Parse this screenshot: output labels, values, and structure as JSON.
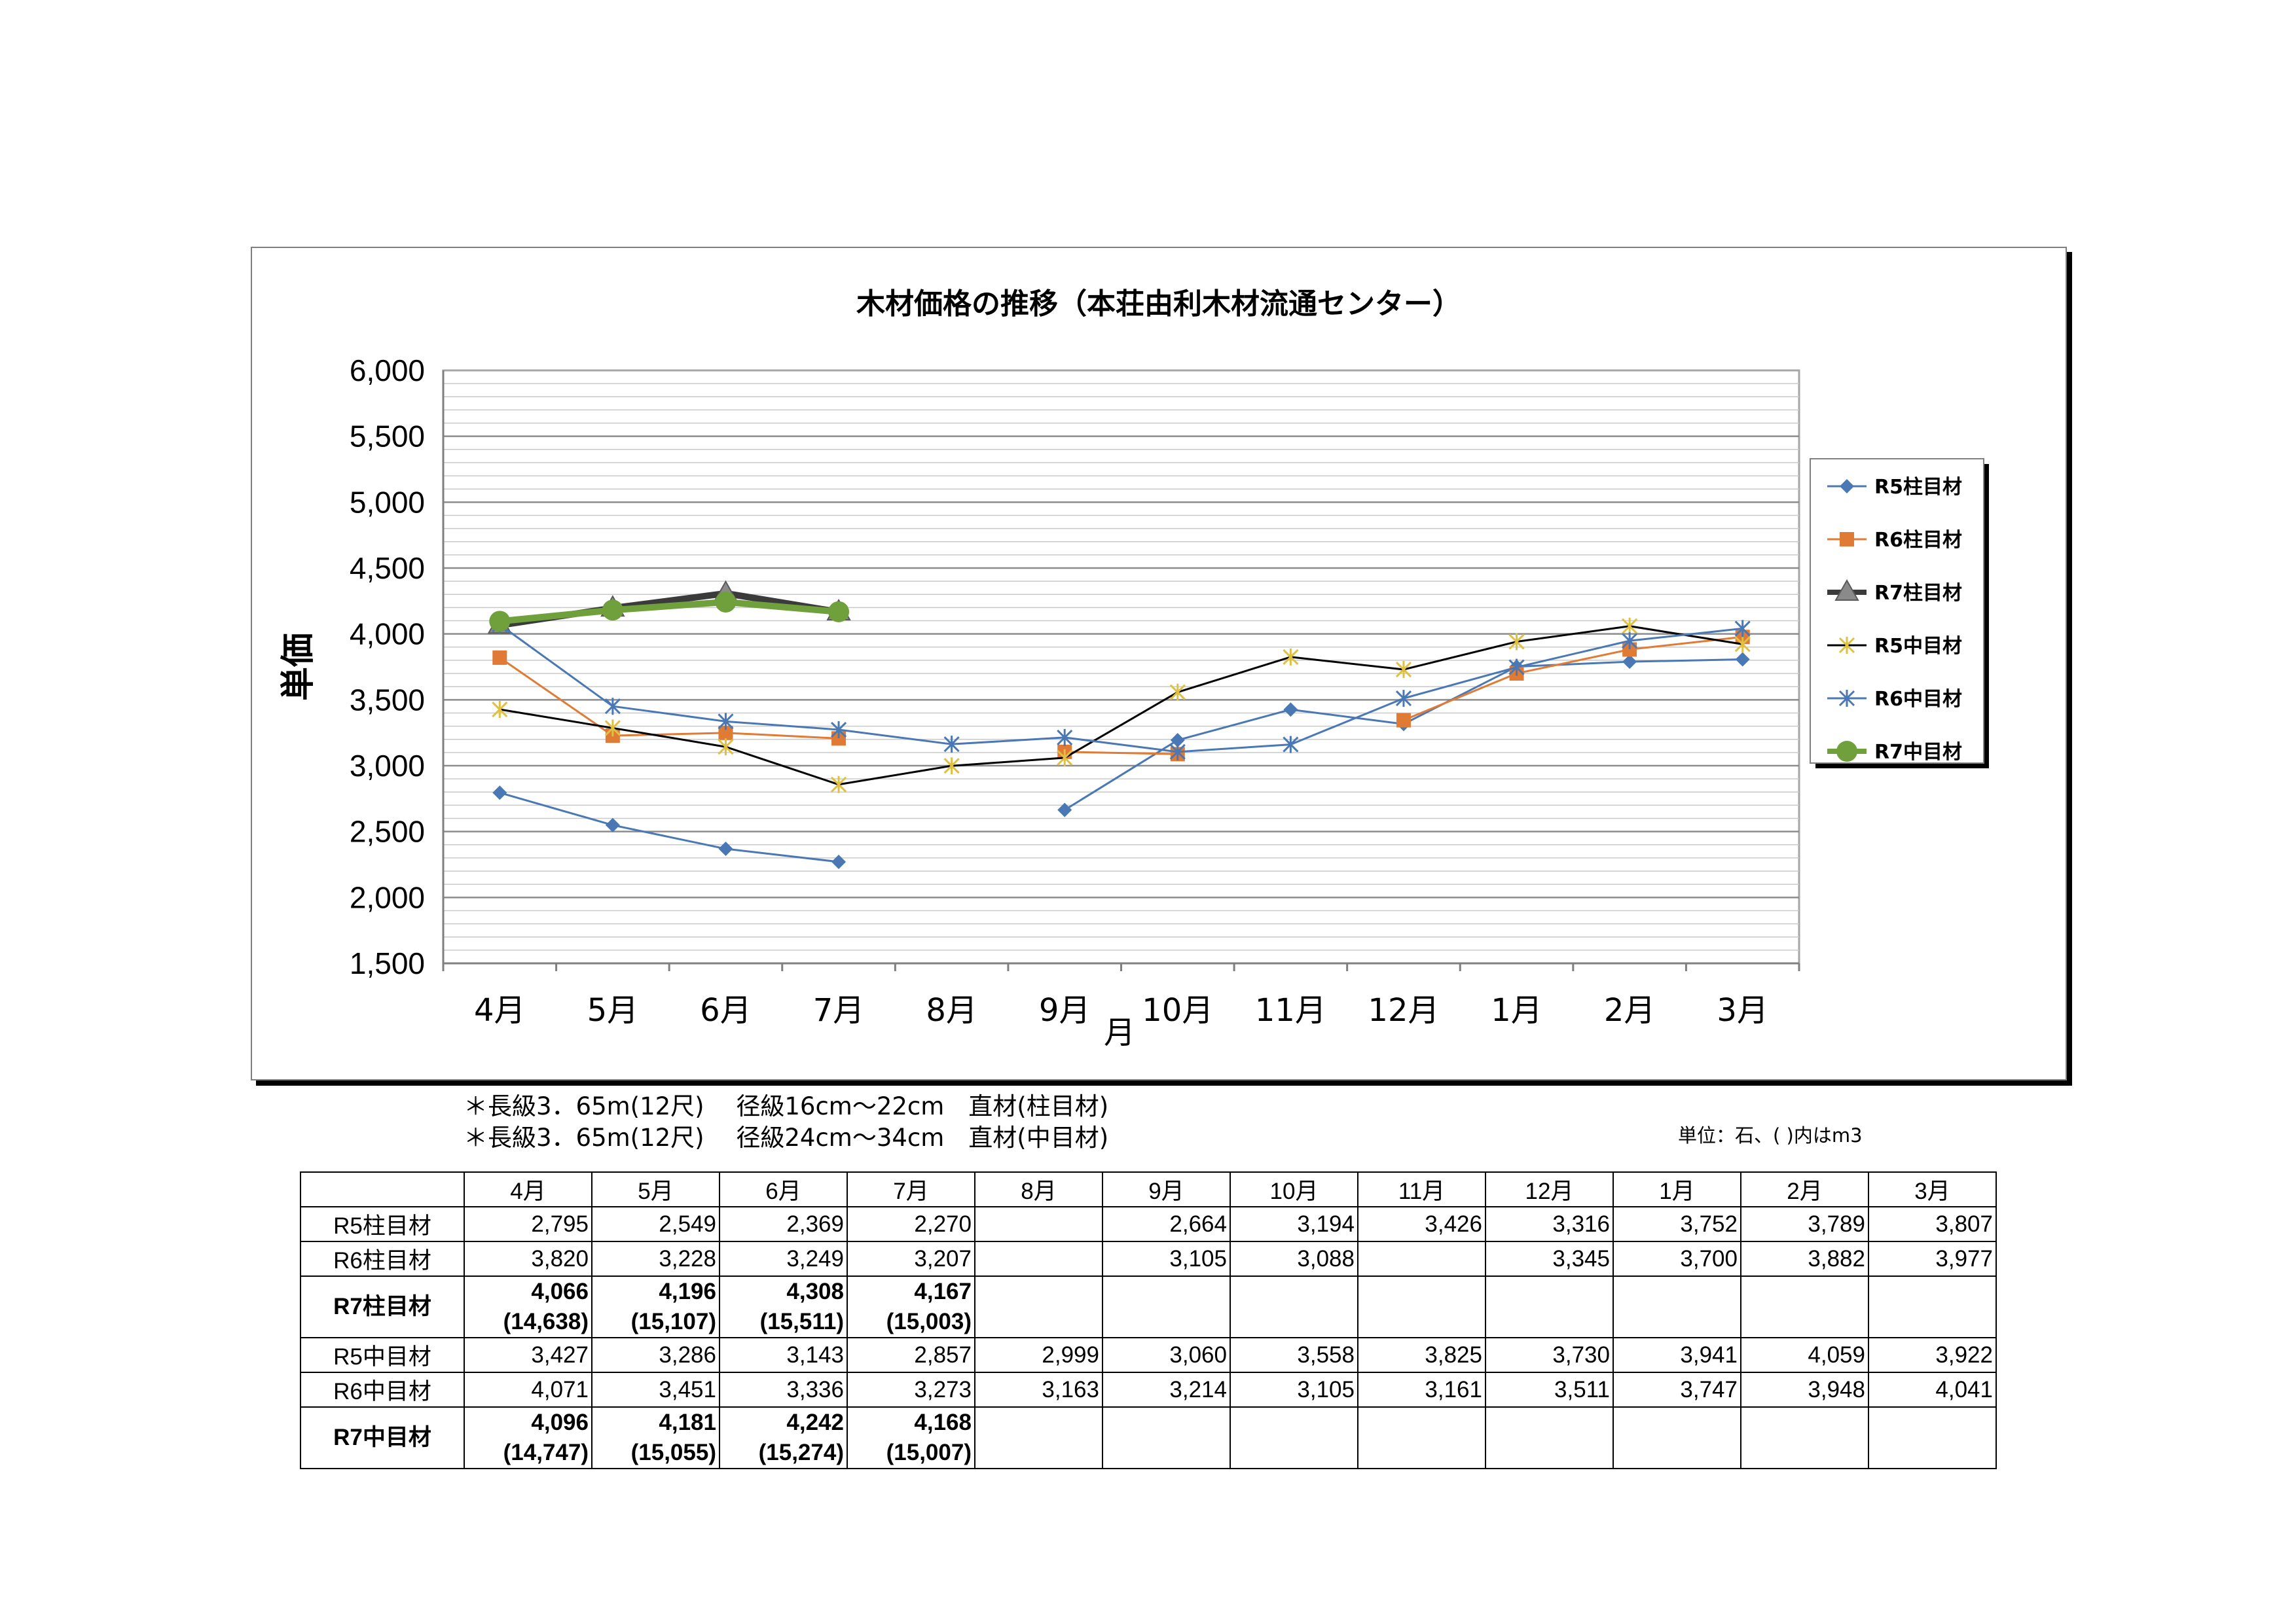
{
  "chart_data": {
    "type": "line",
    "title": "木材価格の推移（本荘由利木材流通センター）",
    "xlabel": "月",
    "ylabel": "単価",
    "ylim": [
      1500,
      6000
    ],
    "yticks": [
      "1,500",
      "2,000",
      "2,500",
      "3,000",
      "3,500",
      "4,000",
      "4,500",
      "5,000",
      "5,500",
      "6,000"
    ],
    "categories": [
      "4月",
      "5月",
      "6月",
      "7月",
      "8月",
      "9月",
      "10月",
      "11月",
      "12月",
      "1月",
      "2月",
      "3月"
    ],
    "grid": true,
    "legend_position": "right",
    "series": [
      {
        "name": "R5柱目材",
        "color": "#4a78b5",
        "marker": "diamond",
        "width": 3,
        "values": [
          2795,
          2549,
          2369,
          2270,
          null,
          2664,
          3194,
          3426,
          3316,
          3752,
          3789,
          3807
        ]
      },
      {
        "name": "R6柱目材",
        "color": "#e07b35",
        "marker": "square",
        "width": 3,
        "values": [
          3820,
          3228,
          3249,
          3207,
          null,
          3105,
          3088,
          null,
          3345,
          3700,
          3882,
          3977
        ]
      },
      {
        "name": "R7柱目材",
        "color": "#3b3b3b",
        "marker": "triangle",
        "width": 10,
        "values": [
          4066,
          4196,
          4308,
          4167,
          null,
          null,
          null,
          null,
          null,
          null,
          null,
          null
        ]
      },
      {
        "name": "R5中目材",
        "color": "#000000",
        "marker": "star",
        "width": 3,
        "values": [
          3427,
          3286,
          3143,
          2857,
          2999,
          3060,
          3558,
          3825,
          3730,
          3941,
          4059,
          3922
        ]
      },
      {
        "name": "R6中目材",
        "color": "#4a78b5",
        "marker": "x",
        "width": 3,
        "values": [
          4071,
          3451,
          3336,
          3273,
          3163,
          3214,
          3105,
          3161,
          3511,
          3747,
          3948,
          4041
        ]
      },
      {
        "name": "R7中目材",
        "color": "#70a03c",
        "marker": "circle",
        "width": 10,
        "values": [
          4096,
          4181,
          4242,
          4168,
          null,
          null,
          null,
          null,
          null,
          null,
          null,
          null
        ]
      }
    ]
  },
  "notes": {
    "line1": "＊長級3．65m(12尺)　 径級16cm～22cm　直材(柱目材)",
    "line2": "＊長級3．65m(12尺)　 径級24cm～34cm　直材(中目材)",
    "unit": "単位：石、(  )内はm3"
  },
  "table": {
    "headers": [
      "",
      "4月",
      "5月",
      "6月",
      "7月",
      "8月",
      "9月",
      "10月",
      "11月",
      "12月",
      "1月",
      "2月",
      "3月"
    ],
    "rows": [
      {
        "label": "R5柱目材",
        "bold": false,
        "cells": [
          "2,795",
          "2,549",
          "2,369",
          "2,270",
          "",
          "2,664",
          "3,194",
          "3,426",
          "3,316",
          "3,752",
          "3,789",
          "3,807"
        ],
        "sub": []
      },
      {
        "label": "R6柱目材",
        "bold": false,
        "cells": [
          "3,820",
          "3,228",
          "3,249",
          "3,207",
          "",
          "3,105",
          "3,088",
          "",
          "3,345",
          "3,700",
          "3,882",
          "3,977"
        ],
        "sub": []
      },
      {
        "label": "R7柱目材",
        "bold": true,
        "cells": [
          "4,066",
          "4,196",
          "4,308",
          "4,167",
          "",
          "",
          "",
          "",
          "",
          "",
          "",
          ""
        ],
        "sub": [
          "(14,638)",
          "(15,107)",
          "(15,511)",
          "(15,003)",
          "",
          "",
          "",
          "",
          "",
          "",
          "",
          ""
        ]
      },
      {
        "label": "R5中目材",
        "bold": false,
        "cells": [
          "3,427",
          "3,286",
          "3,143",
          "2,857",
          "2,999",
          "3,060",
          "3,558",
          "3,825",
          "3,730",
          "3,941",
          "4,059",
          "3,922"
        ],
        "sub": []
      },
      {
        "label": "R6中目材",
        "bold": false,
        "cells": [
          "4,071",
          "3,451",
          "3,336",
          "3,273",
          "3,163",
          "3,214",
          "3,105",
          "3,161",
          "3,511",
          "3,747",
          "3,948",
          "4,041"
        ],
        "sub": []
      },
      {
        "label": "R7中目材",
        "bold": true,
        "cells": [
          "4,096",
          "4,181",
          "4,242",
          "4,168",
          "",
          "",
          "",
          "",
          "",
          "",
          "",
          ""
        ],
        "sub": [
          "(14,747)",
          "(15,055)",
          "(15,274)",
          "(15,007)",
          "",
          "",
          "",
          "",
          "",
          "",
          "",
          ""
        ]
      }
    ]
  }
}
